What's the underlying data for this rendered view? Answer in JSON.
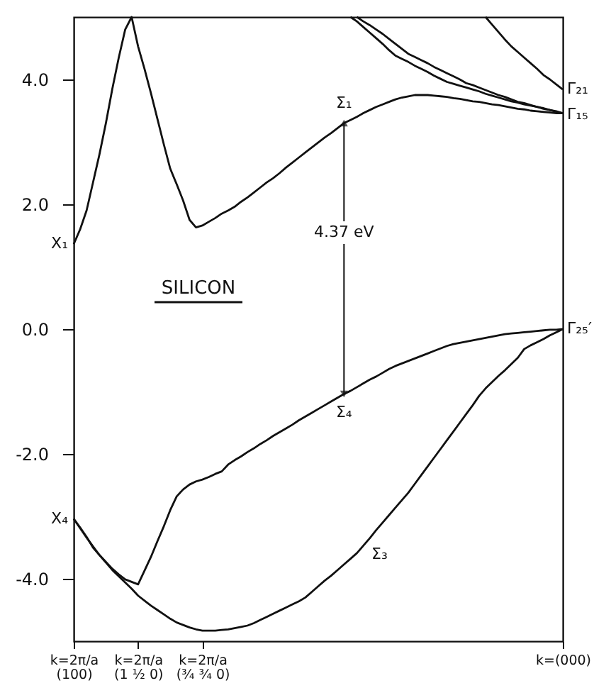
{
  "chart_data": {
    "type": "line",
    "categories": [
      "k=2π/a(100)",
      null,
      null,
      null,
      null,
      null,
      null,
      null,
      null,
      null,
      "k=2π/a(1 ½ 0)",
      null,
      null,
      null,
      null,
      null,
      null,
      null,
      null,
      null,
      "k=2π/a(¾ ¾ 0)",
      null,
      null,
      null,
      null,
      null,
      null,
      null,
      null,
      null,
      null,
      null,
      null,
      null,
      null,
      null,
      null,
      null,
      null,
      null,
      null,
      null,
      null,
      null,
      null,
      null,
      null,
      null,
      null,
      null,
      null,
      null,
      null,
      null,
      null,
      null,
      null,
      null,
      null,
      null,
      null,
      null,
      null,
      null,
      null,
      null,
      null,
      null,
      null,
      null,
      null,
      null,
      null,
      null,
      null,
      null,
      "k=(000)"
    ],
    "ylim": [
      -5,
      5
    ],
    "yticks": [
      {
        "value": 4,
        "label": "4.0"
      },
      {
        "value": 2,
        "label": "2.0"
      },
      {
        "value": 0,
        "label": "0.0"
      },
      {
        "value": -2,
        "label": "-2.0"
      },
      {
        "value": -4,
        "label": "-4.0"
      }
    ],
    "grid": false,
    "marker": "none",
    "line_style": "solid",
    "series": [
      {
        "color": "#111111",
        "values": [
          1.36,
          1.6,
          1.9,
          2.35,
          2.8,
          3.3,
          3.85,
          4.35,
          4.8,
          5.0,
          4.53,
          4.17,
          3.78,
          3.37,
          2.96,
          2.57,
          2.32,
          2.06,
          1.75,
          1.63,
          1.66,
          1.72,
          1.78,
          1.85,
          1.9,
          1.96,
          2.04,
          2.11,
          2.19,
          2.27,
          2.35,
          2.42,
          2.5,
          2.59,
          2.67,
          2.75,
          2.83,
          2.91,
          2.99,
          3.07,
          3.14,
          3.22,
          3.3,
          3.35,
          3.4,
          3.46,
          3.51,
          3.56,
          3.6,
          3.64,
          3.68,
          3.71,
          3.73,
          3.75,
          3.75,
          3.75,
          3.74,
          3.73,
          3.72,
          3.7,
          3.69,
          3.67,
          3.65,
          3.64,
          3.62,
          3.6,
          3.59,
          3.57,
          3.55,
          3.53,
          3.52,
          3.5,
          3.49,
          3.48,
          3.47,
          3.46,
          3.46
        ]
      },
      {
        "color": "#111111",
        "values": [
          null,
          null,
          null,
          null,
          null,
          null,
          null,
          null,
          null,
          null,
          null,
          null,
          null,
          null,
          null,
          null,
          null,
          null,
          null,
          null,
          null,
          null,
          null,
          null,
          null,
          null,
          null,
          null,
          null,
          null,
          null,
          null,
          null,
          null,
          null,
          null,
          null,
          null,
          null,
          null,
          null,
          null,
          null,
          5.0,
          4.93,
          4.84,
          4.75,
          4.66,
          4.57,
          4.47,
          4.38,
          4.33,
          4.28,
          4.22,
          4.17,
          4.12,
          4.06,
          4.01,
          3.96,
          3.93,
          3.9,
          3.87,
          3.84,
          3.81,
          3.77,
          3.74,
          3.71,
          3.68,
          3.65,
          3.63,
          3.6,
          3.58,
          3.56,
          3.53,
          3.51,
          3.48,
          3.46
        ]
      },
      {
        "color": "#111111",
        "values": [
          null,
          null,
          null,
          null,
          null,
          null,
          null,
          null,
          null,
          null,
          null,
          null,
          null,
          null,
          null,
          null,
          null,
          null,
          null,
          null,
          null,
          null,
          null,
          null,
          null,
          null,
          null,
          null,
          null,
          null,
          null,
          null,
          null,
          null,
          null,
          null,
          null,
          null,
          null,
          null,
          null,
          null,
          null,
          null,
          5.0,
          4.93,
          4.87,
          4.8,
          4.73,
          4.65,
          4.57,
          4.49,
          4.41,
          4.36,
          4.31,
          4.26,
          4.2,
          4.15,
          4.1,
          4.05,
          4.0,
          3.94,
          3.91,
          3.87,
          3.83,
          3.79,
          3.75,
          3.72,
          3.68,
          3.64,
          3.62,
          3.59,
          3.56,
          3.54,
          3.51,
          3.49,
          3.46
        ]
      },
      {
        "color": "#111111",
        "values": [
          null,
          null,
          null,
          null,
          null,
          null,
          null,
          null,
          null,
          null,
          null,
          null,
          null,
          null,
          null,
          null,
          null,
          null,
          null,
          null,
          null,
          null,
          null,
          null,
          null,
          null,
          null,
          null,
          null,
          null,
          null,
          null,
          null,
          null,
          null,
          null,
          null,
          null,
          null,
          null,
          null,
          null,
          null,
          null,
          null,
          null,
          null,
          null,
          null,
          null,
          null,
          null,
          null,
          null,
          null,
          null,
          null,
          null,
          null,
          null,
          null,
          null,
          null,
          null,
          5.0,
          4.88,
          4.76,
          4.64,
          4.53,
          4.44,
          4.35,
          4.26,
          4.17,
          4.07,
          4.0,
          3.92,
          3.84
        ]
      },
      {
        "color": "#111111",
        "values": [
          -3.04,
          -3.18,
          -3.33,
          -3.5,
          -3.62,
          -3.73,
          -3.84,
          -3.93,
          -4.01,
          -4.05,
          -4.09,
          -3.87,
          -3.65,
          -3.4,
          -3.16,
          -2.9,
          -2.68,
          -2.57,
          -2.49,
          -2.44,
          -2.41,
          -2.37,
          -2.32,
          -2.28,
          -2.17,
          -2.1,
          -2.04,
          -1.97,
          -1.91,
          -1.84,
          -1.78,
          -1.71,
          -1.65,
          -1.59,
          -1.53,
          -1.46,
          -1.4,
          -1.34,
          -1.28,
          -1.22,
          -1.16,
          -1.1,
          -1.04,
          -0.99,
          -0.93,
          -0.87,
          -0.81,
          -0.76,
          -0.7,
          -0.64,
          -0.59,
          -0.55,
          -0.51,
          -0.47,
          -0.43,
          -0.39,
          -0.35,
          -0.31,
          -0.27,
          -0.24,
          -0.22,
          -0.2,
          -0.18,
          -0.16,
          -0.14,
          -0.12,
          -0.1,
          -0.08,
          -0.07,
          -0.06,
          -0.05,
          -0.04,
          -0.03,
          -0.02,
          -0.01,
          -0.01,
          0.0
        ]
      },
      {
        "color": "#111111",
        "values": [
          -3.04,
          -3.19,
          -3.34,
          -3.48,
          -3.62,
          -3.74,
          -3.86,
          -3.96,
          -4.06,
          -4.16,
          -4.27,
          -4.35,
          -4.43,
          -4.5,
          -4.57,
          -4.64,
          -4.7,
          -4.74,
          -4.78,
          -4.81,
          -4.83,
          -4.83,
          -4.83,
          -4.82,
          -4.81,
          -4.79,
          -4.77,
          -4.75,
          -4.71,
          -4.66,
          -4.61,
          -4.56,
          -4.51,
          -4.46,
          -4.41,
          -4.36,
          -4.3,
          -4.21,
          -4.12,
          -4.03,
          -3.95,
          -3.86,
          -3.77,
          -3.68,
          -3.59,
          -3.47,
          -3.35,
          -3.22,
          -3.1,
          -2.98,
          -2.86,
          -2.74,
          -2.62,
          -2.48,
          -2.34,
          -2.2,
          -2.06,
          -1.92,
          -1.78,
          -1.64,
          -1.5,
          -1.36,
          -1.22,
          -1.07,
          -0.95,
          -0.85,
          -0.75,
          -0.66,
          -0.56,
          -0.46,
          -0.32,
          -0.26,
          -0.21,
          -0.16,
          -0.1,
          -0.05,
          0.0
        ]
      }
    ],
    "annotations": [
      "X₁",
      "X₄",
      "Γ₂₁",
      "Γ₁₅",
      "Γ₂₅′",
      "Σ₁",
      "Σ₄",
      "Σ₃",
      "4.37 eV",
      "SILICON"
    ]
  }
}
